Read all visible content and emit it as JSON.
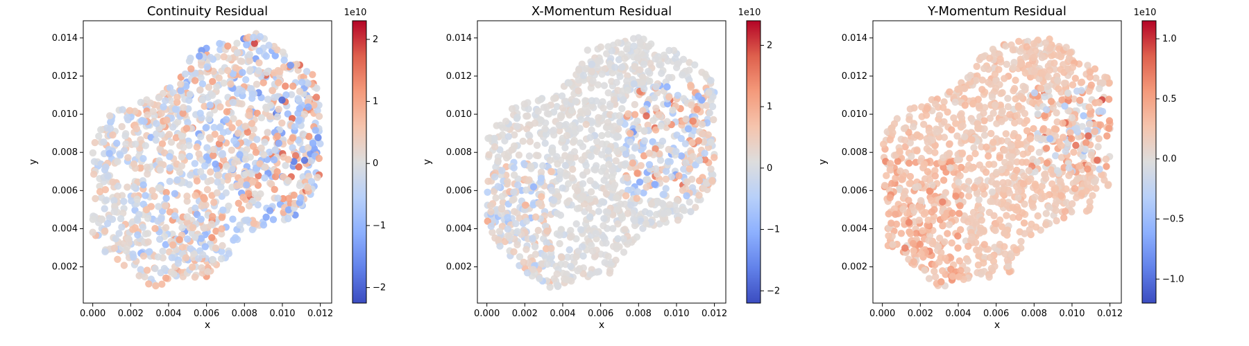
{
  "chart_data": [
    {
      "type": "scatter",
      "title": "Continuity Residual",
      "xlabel": "x",
      "ylabel": "y",
      "xlim": [
        -0.0005,
        0.0126
      ],
      "ylim": [
        0.0001,
        0.0149
      ],
      "xticks": [
        "0.000",
        "0.002",
        "0.004",
        "0.006",
        "0.008",
        "0.010",
        "0.012"
      ],
      "yticks": [
        "0.002",
        "0.004",
        "0.006",
        "0.008",
        "0.010",
        "0.012",
        "0.014"
      ],
      "colormap": "coolwarm",
      "colorbar": {
        "exponent_label": "1e10",
        "range": [
          -2.25,
          2.3
        ],
        "ticks": [
          -2,
          -1,
          0,
          1,
          2
        ],
        "tick_labels": [
          "−2",
          "−1",
          "0",
          "1",
          "2"
        ]
      },
      "domain": "rectangle 0–0.012 x 0.0008–0.0143 rotated ~15°, with quarter-circle cutouts at top-left and bottom-right",
      "pattern": "uniform",
      "spread": 0.9
    },
    {
      "type": "scatter",
      "title": "X-Momentum Residual",
      "xlabel": "x",
      "ylabel": "y",
      "xlim": [
        -0.0005,
        0.0126
      ],
      "ylim": [
        0.0001,
        0.0149
      ],
      "xticks": [
        "0.000",
        "0.002",
        "0.004",
        "0.006",
        "0.008",
        "0.010",
        "0.012"
      ],
      "yticks": [
        "0.002",
        "0.004",
        "0.006",
        "0.008",
        "0.010",
        "0.012",
        "0.014"
      ],
      "colormap": "coolwarm",
      "colorbar": {
        "exponent_label": "1e10",
        "range": [
          -2.2,
          2.4
        ],
        "ticks": [
          -2,
          -1,
          0,
          1,
          2
        ],
        "tick_labels": [
          "−2",
          "−1",
          "0",
          "1",
          "2"
        ]
      },
      "domain": "same geometry",
      "pattern": "stronger near inlet (left) and right side",
      "spread": 0.6
    },
    {
      "type": "scatter",
      "title": "Y-Momentum Residual",
      "xlabel": "x",
      "ylabel": "y",
      "xlim": [
        -0.0005,
        0.0126
      ],
      "ylim": [
        0.0001,
        0.0149
      ],
      "xticks": [
        "0.000",
        "0.002",
        "0.004",
        "0.006",
        "0.008",
        "0.010",
        "0.012"
      ],
      "yticks": [
        "0.002",
        "0.004",
        "0.006",
        "0.008",
        "0.010",
        "0.012",
        "0.014"
      ],
      "colormap": "coolwarm",
      "colorbar": {
        "exponent_label": "1e10",
        "range": [
          -1.2,
          1.15
        ],
        "ticks": [
          -1.0,
          -0.5,
          0.0,
          0.5,
          1.0
        ],
        "tick_labels": [
          "−1.0",
          "−0.5",
          "0.0",
          "0.5",
          "1.0"
        ]
      },
      "domain": "same geometry",
      "pattern": "mostly positive, strong near right side",
      "spread": 0.55
    }
  ]
}
